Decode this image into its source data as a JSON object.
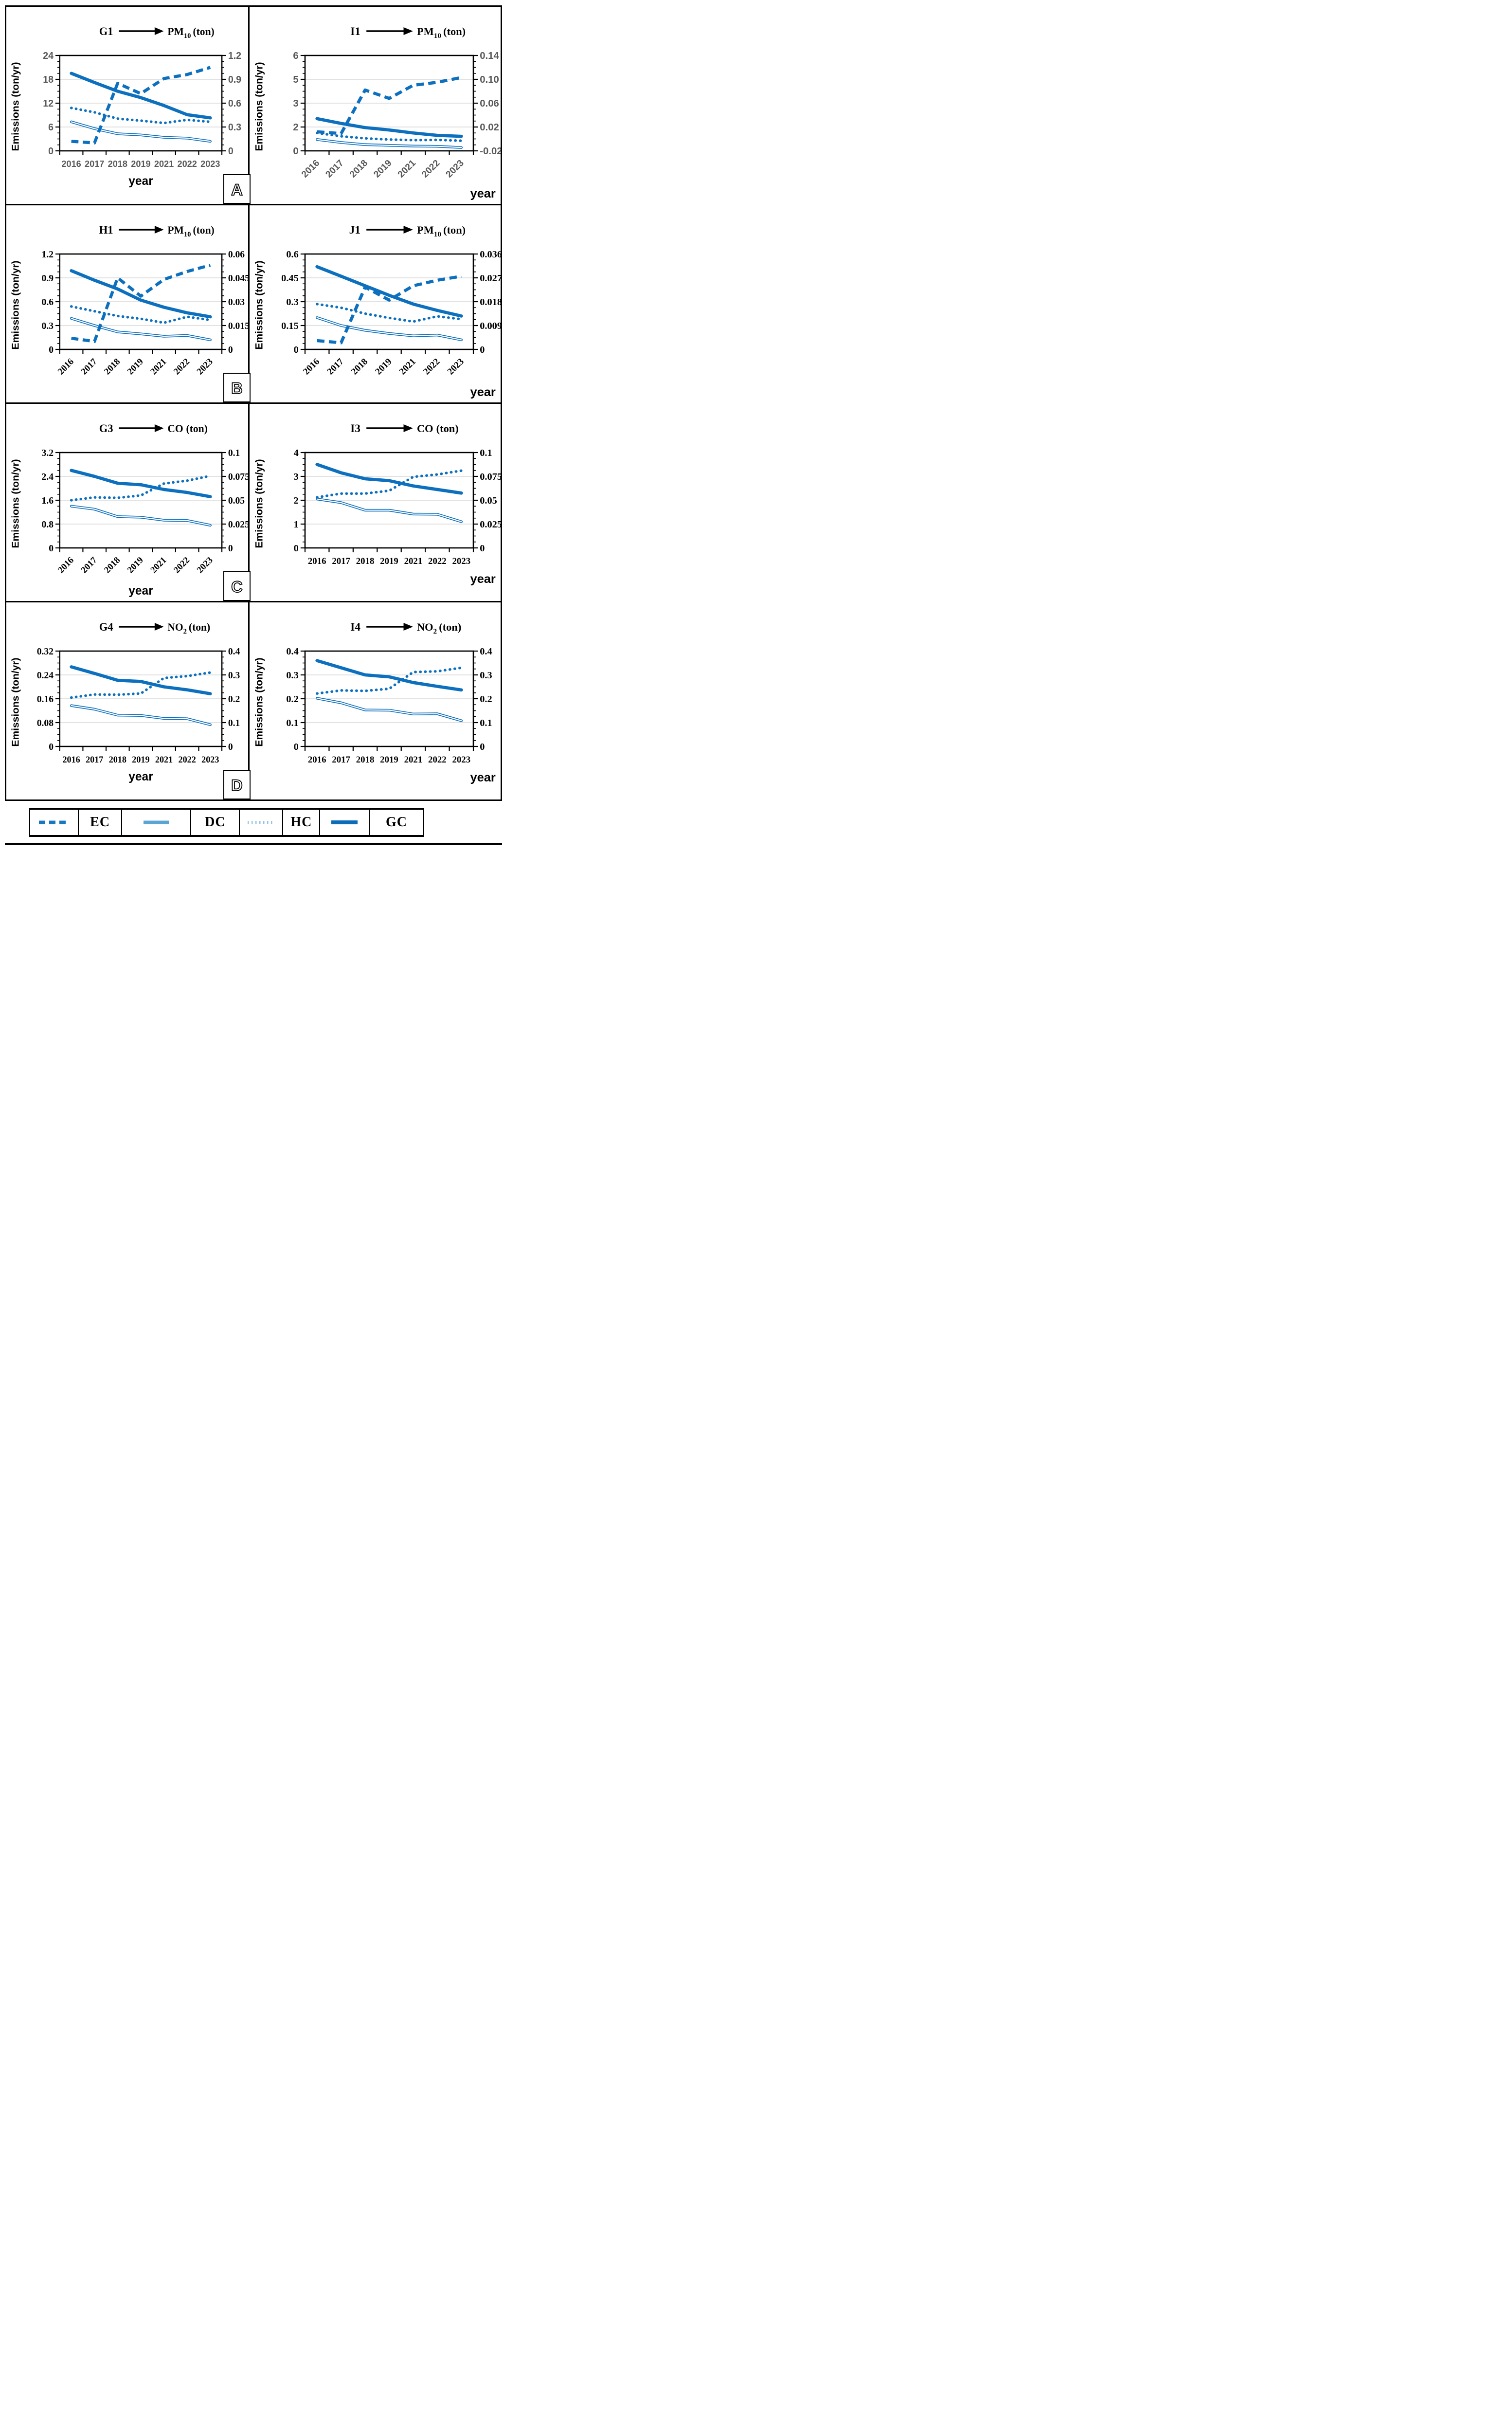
{
  "figure": {
    "panels": [
      {
        "label": "A"
      },
      {
        "label": "B"
      },
      {
        "label": "C"
      },
      {
        "label": "D"
      }
    ],
    "legend": {
      "entries": [
        {
          "symbol": "dashed-line",
          "label": "EC"
        },
        {
          "symbol": "light-solid-line",
          "label": "DC"
        },
        {
          "symbol": "dotted-line",
          "label": "HC"
        },
        {
          "symbol": "thick-solid-line",
          "label": "GC"
        }
      ]
    },
    "colors": {
      "series_blue": "#0c70bf",
      "legend_ec_blue": "#1878bf",
      "legend_dc_blue": "#5aa4d4",
      "legend_hc_blue": "#93c4e4",
      "legend_gc_blue": "#0b6db8",
      "grid_gray": "#d9d9d9",
      "tick_gray": "#595959",
      "axis_black": "#000000"
    }
  },
  "chart_data": [
    {
      "id": "G1",
      "panel": "A",
      "type": "line",
      "title": {
        "code": "G1",
        "pollutant_base": "PM",
        "pollutant_sub": "10",
        "pollutant_rest": "(ton)"
      },
      "font": "sans",
      "x": {
        "categories": [
          "2016",
          "2017",
          "2018",
          "2019",
          "2021",
          "2022",
          "2023"
        ],
        "label": "year",
        "label_position": "center",
        "rotated": false
      },
      "left_axis": {
        "title": "Emissions (ton/yr)",
        "values": [
          0,
          6,
          12,
          18,
          24
        ],
        "labels": [
          "0",
          "6",
          "12",
          "18",
          "24"
        ]
      },
      "right_axis": {
        "values": [
          0,
          0.3,
          0.6,
          0.9,
          1.2
        ],
        "labels": [
          "0",
          "0.3",
          "0.6",
          "0.9",
          "1.2"
        ]
      },
      "series": [
        {
          "name": "GC",
          "axis": "left",
          "style": "thick-solid",
          "values": [
            19.5,
            17.2,
            15.0,
            13.4,
            11.4,
            9.1,
            8.3
          ]
        },
        {
          "name": "DC",
          "axis": "left",
          "style": "double-solid",
          "values": [
            7.3,
            5.6,
            4.3,
            4.0,
            3.4,
            3.2,
            2.4
          ]
        },
        {
          "name": "HC",
          "axis": "left",
          "style": "dotted",
          "values": [
            10.8,
            9.7,
            8.1,
            7.6,
            7.0,
            7.8,
            7.3
          ]
        },
        {
          "name": "EC",
          "axis": "right",
          "style": "dashed",
          "values": [
            0.12,
            0.1,
            0.85,
            0.72,
            0.91,
            0.96,
            1.05
          ]
        }
      ]
    },
    {
      "id": "I1",
      "panel": "A",
      "type": "line",
      "title": {
        "code": "I1",
        "pollutant_base": "PM",
        "pollutant_sub": "10",
        "pollutant_rest": "(ton)"
      },
      "font": "sans",
      "x": {
        "categories": [
          "2016",
          "2017",
          "2018",
          "2019",
          "2021",
          "2022",
          "2023"
        ],
        "label": "year",
        "label_position": "right",
        "rotated": true
      },
      "left_axis": {
        "title": "Emissions (ton/yr)",
        "values": [
          0,
          2,
          3,
          5,
          6
        ],
        "labels": [
          "0",
          "2",
          "3",
          "5",
          "6"
        ]
      },
      "right_axis": {
        "values": [
          -0.02,
          0.02,
          0.06,
          0.1,
          0.14
        ],
        "labels": [
          "-0.02",
          "0.02",
          "0.06",
          "0.10",
          "0.14"
        ]
      },
      "series": [
        {
          "name": "GC",
          "axis": "left",
          "style": "thick-solid",
          "values": [
            2.35,
            2.15,
            1.95,
            1.75,
            1.5,
            1.3,
            1.22
          ]
        },
        {
          "name": "DC",
          "axis": "left",
          "style": "double-solid",
          "values": [
            0.95,
            0.7,
            0.52,
            0.46,
            0.4,
            0.38,
            0.28
          ]
        },
        {
          "name": "HC",
          "axis": "left",
          "style": "dotted",
          "values": [
            1.5,
            1.22,
            1.05,
            0.95,
            0.9,
            0.92,
            0.85
          ]
        },
        {
          "name": "EC",
          "axis": "right",
          "style": "dashed",
          "values": [
            0.012,
            0.009,
            0.082,
            0.068,
            0.09,
            0.095,
            0.103
          ]
        }
      ]
    },
    {
      "id": "H1",
      "panel": "B",
      "type": "line",
      "title": {
        "code": "H1",
        "pollutant_base": "PM",
        "pollutant_sub": "10",
        "pollutant_rest": "(ton)"
      },
      "font": "serif",
      "x": {
        "categories": [
          "2016",
          "2017",
          "2018",
          "2019",
          "2021",
          "2022",
          "2023"
        ],
        "label": "year",
        "label_position": "none",
        "rotated": true
      },
      "left_axis": {
        "title": "Emissions (ton/yr)",
        "values": [
          0,
          0.3,
          0.6,
          0.9,
          1.2
        ],
        "labels": [
          "0",
          "0.3",
          "0.6",
          "0.9",
          "1.2"
        ]
      },
      "right_axis": {
        "values": [
          0,
          0.015,
          0.03,
          0.045,
          0.06
        ],
        "labels": [
          "0",
          "0.015",
          "0.03",
          "0.045",
          "0.06"
        ]
      },
      "series": [
        {
          "name": "GC",
          "axis": "left",
          "style": "thick-solid",
          "values": [
            0.99,
            0.87,
            0.76,
            0.62,
            0.53,
            0.46,
            0.41
          ]
        },
        {
          "name": "DC",
          "axis": "left",
          "style": "double-solid",
          "values": [
            0.39,
            0.3,
            0.22,
            0.195,
            0.165,
            0.175,
            0.12
          ]
        },
        {
          "name": "HC",
          "axis": "left",
          "style": "dotted",
          "values": [
            0.54,
            0.48,
            0.42,
            0.385,
            0.335,
            0.41,
            0.37
          ]
        },
        {
          "name": "EC",
          "axis": "right",
          "style": "dashed",
          "values": [
            0.007,
            0.005,
            0.045,
            0.0335,
            0.044,
            0.049,
            0.053
          ]
        }
      ]
    },
    {
      "id": "J1",
      "panel": "B",
      "type": "line",
      "title": {
        "code": "J1",
        "pollutant_base": "PM",
        "pollutant_sub": "10",
        "pollutant_rest": "(ton)"
      },
      "font": "serif",
      "x": {
        "categories": [
          "2016",
          "2017",
          "2018",
          "2019",
          "2021",
          "2022",
          "2023"
        ],
        "label": "year",
        "label_position": "right",
        "rotated": true
      },
      "left_axis": {
        "title": "Emissions (ton/yr)",
        "values": [
          0,
          0.15,
          0.3,
          0.45,
          0.6
        ],
        "labels": [
          "0",
          "0.15",
          "0.3",
          "0.45",
          "0.6"
        ]
      },
      "right_axis": {
        "values": [
          0,
          0.009,
          0.018,
          0.027,
          0.036
        ],
        "labels": [
          "0",
          "0.009",
          "0.018",
          "0.027",
          "0.036"
        ]
      },
      "series": [
        {
          "name": "GC",
          "axis": "left",
          "style": "thick-solid",
          "values": [
            0.52,
            0.46,
            0.4,
            0.34,
            0.285,
            0.245,
            0.21
          ]
        },
        {
          "name": "DC",
          "axis": "left",
          "style": "double-solid",
          "values": [
            0.2,
            0.15,
            0.12,
            0.1,
            0.085,
            0.09,
            0.06
          ]
        },
        {
          "name": "HC",
          "axis": "left",
          "style": "dotted",
          "values": [
            0.285,
            0.262,
            0.225,
            0.198,
            0.175,
            0.208,
            0.19
          ]
        },
        {
          "name": "EC",
          "axis": "right",
          "style": "dashed",
          "values": [
            0.0033,
            0.0025,
            0.0235,
            0.0186,
            0.024,
            0.0261,
            0.0276
          ]
        }
      ]
    },
    {
      "id": "G3",
      "panel": "C",
      "type": "line",
      "title": {
        "code": "G3",
        "pollutant_base": "CO",
        "pollutant_sub": "",
        "pollutant_rest": "(ton)"
      },
      "font": "serif",
      "x": {
        "categories": [
          "2016",
          "2017",
          "2018",
          "2019",
          "2021",
          "2022",
          "2023"
        ],
        "label": "year",
        "label_position": "center",
        "rotated": true
      },
      "left_axis": {
        "title": "Emissions (ton/yr)",
        "values": [
          0,
          0.8,
          1.6,
          2.4,
          3.2
        ],
        "labels": [
          "0",
          "0.8",
          "1.6",
          "2.4",
          "3.2"
        ]
      },
      "right_axis": {
        "values": [
          0,
          0.025,
          0.05,
          0.075,
          0.1
        ],
        "labels": [
          "0",
          "0.025",
          "0.05",
          "0.075",
          "0.1"
        ]
      },
      "series": [
        {
          "name": "GC",
          "axis": "left",
          "style": "thick-solid",
          "values": [
            2.6,
            2.4,
            2.17,
            2.12,
            1.96,
            1.86,
            1.72
          ]
        },
        {
          "name": "DC",
          "axis": "left",
          "style": "double-solid",
          "values": [
            1.4,
            1.3,
            1.05,
            1.03,
            0.93,
            0.92,
            0.76
          ]
        },
        {
          "name": "HC",
          "axis": "right",
          "style": "dotted",
          "values": [
            0.05,
            0.053,
            0.0525,
            0.055,
            0.0675,
            0.0705,
            0.0755
          ]
        }
      ]
    },
    {
      "id": "I3",
      "panel": "C",
      "type": "line",
      "title": {
        "code": "I3",
        "pollutant_base": "CO",
        "pollutant_sub": "",
        "pollutant_rest": "(ton)"
      },
      "font": "serif",
      "x": {
        "categories": [
          "2016",
          "2017",
          "2018",
          "2019",
          "2021",
          "2022",
          "2023"
        ],
        "label": "year",
        "label_position": "right",
        "rotated": false
      },
      "left_axis": {
        "title": "Emissions (ton/yr)",
        "values": [
          0,
          1,
          2,
          3,
          4
        ],
        "labels": [
          "0",
          "1",
          "2",
          "3",
          "4"
        ]
      },
      "right_axis": {
        "values": [
          0,
          0.025,
          0.05,
          0.075,
          0.1
        ],
        "labels": [
          "0",
          "0.025",
          "0.05",
          "0.075",
          "0.1"
        ]
      },
      "series": [
        {
          "name": "GC",
          "axis": "left",
          "style": "thick-solid",
          "values": [
            3.5,
            3.15,
            2.9,
            2.82,
            2.6,
            2.45,
            2.3
          ]
        },
        {
          "name": "DC",
          "axis": "left",
          "style": "double-solid",
          "values": [
            2.05,
            1.9,
            1.58,
            1.58,
            1.42,
            1.41,
            1.1
          ]
        },
        {
          "name": "HC",
          "axis": "right",
          "style": "dotted",
          "values": [
            0.053,
            0.057,
            0.057,
            0.06,
            0.0745,
            0.077,
            0.081
          ]
        }
      ]
    },
    {
      "id": "G4",
      "panel": "D",
      "type": "line",
      "title": {
        "code": "G4",
        "pollutant_base": "NO",
        "pollutant_sub": "2",
        "pollutant_rest": "(ton)"
      },
      "font": "serif",
      "x": {
        "categories": [
          "2016",
          "2017",
          "2018",
          "2019",
          "2021",
          "2022",
          "2023"
        ],
        "label": "year",
        "label_position": "center",
        "rotated": false
      },
      "left_axis": {
        "title": "Emissions (ton/yr)",
        "values": [
          0,
          0.08,
          0.16,
          0.24,
          0.32
        ],
        "labels": [
          "0",
          "0.08",
          "0.16",
          "0.24",
          "0.32"
        ]
      },
      "right_axis": {
        "values": [
          0,
          0.1,
          0.2,
          0.3,
          0.4
        ],
        "labels": [
          "0",
          "0.1",
          "0.2",
          "0.3",
          "0.4"
        ]
      },
      "series": [
        {
          "name": "GC",
          "axis": "left",
          "style": "thick-solid",
          "values": [
            0.267,
            0.245,
            0.222,
            0.218,
            0.2,
            0.19,
            0.177
          ]
        },
        {
          "name": "DC",
          "axis": "left",
          "style": "double-solid",
          "values": [
            0.137,
            0.125,
            0.105,
            0.104,
            0.094,
            0.093,
            0.073
          ]
        },
        {
          "name": "HC",
          "axis": "right",
          "style": "dotted",
          "values": [
            0.205,
            0.218,
            0.217,
            0.222,
            0.287,
            0.295,
            0.31
          ]
        }
      ]
    },
    {
      "id": "I4",
      "panel": "D",
      "type": "line",
      "title": {
        "code": "I4",
        "pollutant_base": "NO",
        "pollutant_sub": "2",
        "pollutant_rest": "(ton)"
      },
      "font": "serif",
      "x": {
        "categories": [
          "2016",
          "2017",
          "2018",
          "2019",
          "2021",
          "2022",
          "2023"
        ],
        "label": "year",
        "label_position": "right",
        "rotated": false
      },
      "left_axis": {
        "title": "Emissions (ton/yr)",
        "values": [
          0,
          0.1,
          0.2,
          0.3,
          0.4
        ],
        "labels": [
          "0",
          "0.1",
          "0.2",
          "0.3",
          "0.4"
        ]
      },
      "right_axis": {
        "values": [
          0,
          0.1,
          0.2,
          0.3,
          0.4
        ],
        "labels": [
          "0",
          "0.1",
          "0.2",
          "0.3",
          "0.4"
        ]
      },
      "series": [
        {
          "name": "GC",
          "axis": "left",
          "style": "thick-solid",
          "values": [
            0.36,
            0.33,
            0.3,
            0.292,
            0.268,
            0.252,
            0.237
          ]
        },
        {
          "name": "DC",
          "axis": "left",
          "style": "double-solid",
          "values": [
            0.202,
            0.183,
            0.153,
            0.152,
            0.136,
            0.137,
            0.108
          ]
        },
        {
          "name": "HC",
          "axis": "right",
          "style": "dotted",
          "values": [
            0.222,
            0.235,
            0.233,
            0.242,
            0.312,
            0.315,
            0.33
          ]
        }
      ]
    }
  ]
}
